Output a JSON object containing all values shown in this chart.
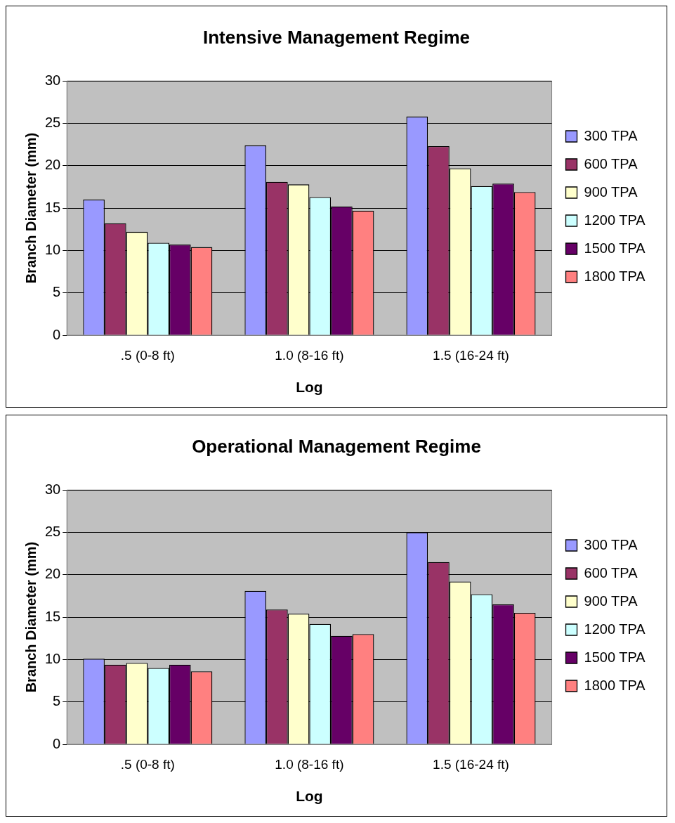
{
  "chart_data": [
    {
      "type": "bar",
      "title": "Intensive Management Regime",
      "xlabel": "Log",
      "ylabel": "Branch Diameter (mm)",
      "categories": [
        ".5 (0-8 ft)",
        "1.0 (8-16 ft)",
        "1.5 (16-24 ft)"
      ],
      "series": [
        {
          "name": "300 TPA",
          "color": "#9999ff",
          "values": [
            16.0,
            22.4,
            25.8
          ]
        },
        {
          "name": "600 TPA",
          "color": "#993366",
          "values": [
            13.2,
            18.1,
            22.3
          ]
        },
        {
          "name": "900 TPA",
          "color": "#ffffcc",
          "values": [
            12.2,
            17.8,
            19.7
          ]
        },
        {
          "name": "1200 TPA",
          "color": "#ccffff",
          "values": [
            10.9,
            16.3,
            17.6
          ]
        },
        {
          "name": "1500 TPA",
          "color": "#660066",
          "values": [
            10.7,
            15.2,
            17.9
          ]
        },
        {
          "name": "1800 TPA",
          "color": "#ff8080",
          "values": [
            10.4,
            14.7,
            16.9
          ]
        }
      ],
      "ylim": [
        0,
        30
      ],
      "yticks": [
        0,
        5,
        10,
        15,
        20,
        25,
        30
      ],
      "grid": "y",
      "legend": "right"
    },
    {
      "type": "bar",
      "title": "Operational Management Regime",
      "xlabel": "Log",
      "ylabel": "Branch Diameter (mm)",
      "categories": [
        ".5 (0-8 ft)",
        "1.0 (8-16 ft)",
        "1.5 (16-24 ft)"
      ],
      "series": [
        {
          "name": "300 TPA",
          "color": "#9999ff",
          "values": [
            10.1,
            18.1,
            25.0
          ]
        },
        {
          "name": "600 TPA",
          "color": "#993366",
          "values": [
            9.4,
            15.9,
            21.5
          ]
        },
        {
          "name": "900 TPA",
          "color": "#ffffcc",
          "values": [
            9.6,
            15.4,
            19.2
          ]
        },
        {
          "name": "1200 TPA",
          "color": "#ccffff",
          "values": [
            9.0,
            14.2,
            17.7
          ]
        },
        {
          "name": "1500 TPA",
          "color": "#660066",
          "values": [
            9.4,
            12.8,
            16.5
          ]
        },
        {
          "name": "1800 TPA",
          "color": "#ff8080",
          "values": [
            8.6,
            13.0,
            15.5
          ]
        }
      ],
      "ylim": [
        0,
        30
      ],
      "yticks": [
        0,
        5,
        10,
        15,
        20,
        25,
        30
      ],
      "grid": "y",
      "legend": "right"
    }
  ]
}
